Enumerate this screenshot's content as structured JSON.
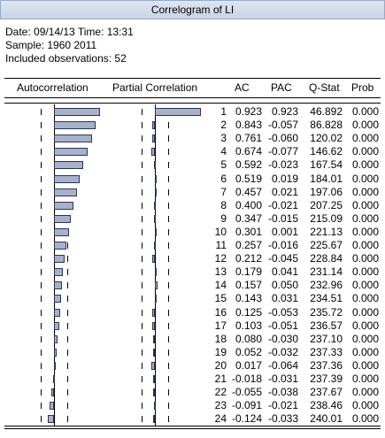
{
  "window": {
    "title": "Correlogram of LI"
  },
  "info": {
    "date_line": "Date: 09/14/13   Time: 13:31",
    "sample_line": "Sample: 1960 2011",
    "obs_line": "Included observations: 52"
  },
  "columns": {
    "autocorrelation": "Autocorrelation",
    "partial_correlation": "Partial Correlation",
    "ac": "AC",
    "pac": "PAC",
    "qstat": "Q-Stat",
    "prob": "Prob"
  },
  "rows": [
    {
      "lag": "1",
      "ac": "0.923",
      "pac": "0.923",
      "q": "46.892",
      "p": "0.000"
    },
    {
      "lag": "2",
      "ac": "0.843",
      "pac": "-0.057",
      "q": "86.828",
      "p": "0.000"
    },
    {
      "lag": "3",
      "ac": "0.761",
      "pac": "-0.060",
      "q": "120.02",
      "p": "0.000"
    },
    {
      "lag": "4",
      "ac": "0.674",
      "pac": "-0.077",
      "q": "146.62",
      "p": "0.000"
    },
    {
      "lag": "5",
      "ac": "0.592",
      "pac": "-0.023",
      "q": "167.54",
      "p": "0.000"
    },
    {
      "lag": "6",
      "ac": "0.519",
      "pac": "0.019",
      "q": "184.01",
      "p": "0.000"
    },
    {
      "lag": "7",
      "ac": "0.457",
      "pac": "0.021",
      "q": "197.06",
      "p": "0.000"
    },
    {
      "lag": "8",
      "ac": "0.400",
      "pac": "-0.021",
      "q": "207.25",
      "p": "0.000"
    },
    {
      "lag": "9",
      "ac": "0.347",
      "pac": "-0.015",
      "q": "215.09",
      "p": "0.000"
    },
    {
      "lag": "10",
      "ac": "0.301",
      "pac": "0.001",
      "q": "221.13",
      "p": "0.000"
    },
    {
      "lag": "11",
      "ac": "0.257",
      "pac": "-0.016",
      "q": "225.67",
      "p": "0.000"
    },
    {
      "lag": "12",
      "ac": "0.212",
      "pac": "-0.045",
      "q": "228.84",
      "p": "0.000"
    },
    {
      "lag": "13",
      "ac": "0.179",
      "pac": "0.041",
      "q": "231.14",
      "p": "0.000"
    },
    {
      "lag": "14",
      "ac": "0.157",
      "pac": "0.050",
      "q": "232.96",
      "p": "0.000"
    },
    {
      "lag": "15",
      "ac": "0.143",
      "pac": "0.031",
      "q": "234.51",
      "p": "0.000"
    },
    {
      "lag": "16",
      "ac": "0.125",
      "pac": "-0.053",
      "q": "235.72",
      "p": "0.000"
    },
    {
      "lag": "17",
      "ac": "0.103",
      "pac": "-0.051",
      "q": "236.57",
      "p": "0.000"
    },
    {
      "lag": "18",
      "ac": "0.080",
      "pac": "-0.030",
      "q": "237.10",
      "p": "0.000"
    },
    {
      "lag": "19",
      "ac": "0.052",
      "pac": "-0.032",
      "q": "237.33",
      "p": "0.000"
    },
    {
      "lag": "20",
      "ac": "0.017",
      "pac": "-0.064",
      "q": "237.36",
      "p": "0.000"
    },
    {
      "lag": "21",
      "ac": "-0.018",
      "pac": "-0.031",
      "q": "237.39",
      "p": "0.000"
    },
    {
      "lag": "22",
      "ac": "-0.055",
      "pac": "-0.038",
      "q": "237.67",
      "p": "0.000"
    },
    {
      "lag": "23",
      "ac": "-0.091",
      "pac": "-0.021",
      "q": "238.46",
      "p": "0.000"
    },
    {
      "lag": "24",
      "ac": "-0.124",
      "pac": "-0.033",
      "q": "240.01",
      "p": "0.000"
    }
  ],
  "colors": {
    "bar_fill": "#a9b1c9",
    "bar_border": "#2b3558"
  }
}
